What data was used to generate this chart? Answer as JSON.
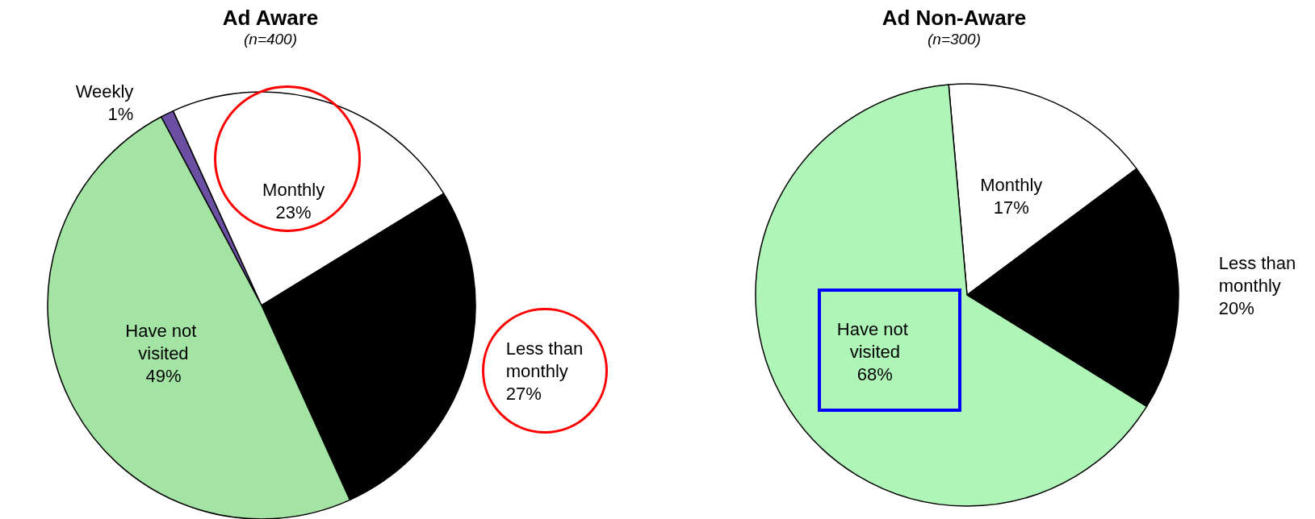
{
  "chart_data": [
    {
      "type": "pie",
      "title": "Ad Aware",
      "subtitle": "(n=400)",
      "categories": [
        "Weekly",
        "Monthly",
        "Less than monthly",
        "Have not visited"
      ],
      "values": [
        1,
        23,
        27,
        49
      ],
      "colors": [
        "#6a4fa3",
        "#ffffff",
        "#000000",
        "#a3e4a5"
      ],
      "value_labels": [
        "1%",
        "23%",
        "27%",
        "49%"
      ],
      "legend": false
    },
    {
      "type": "pie",
      "title": "Ad Non-Aware",
      "subtitle": "(n=300)",
      "categories": [
        "Monthly",
        "Less than monthly",
        "Have not visited"
      ],
      "values": [
        17,
        20,
        68
      ],
      "colors": [
        "#ffffff",
        "#000000",
        "#b0f5b8"
      ],
      "value_labels": [
        "17%",
        "20%",
        "68%"
      ],
      "legend": false
    }
  ]
}
